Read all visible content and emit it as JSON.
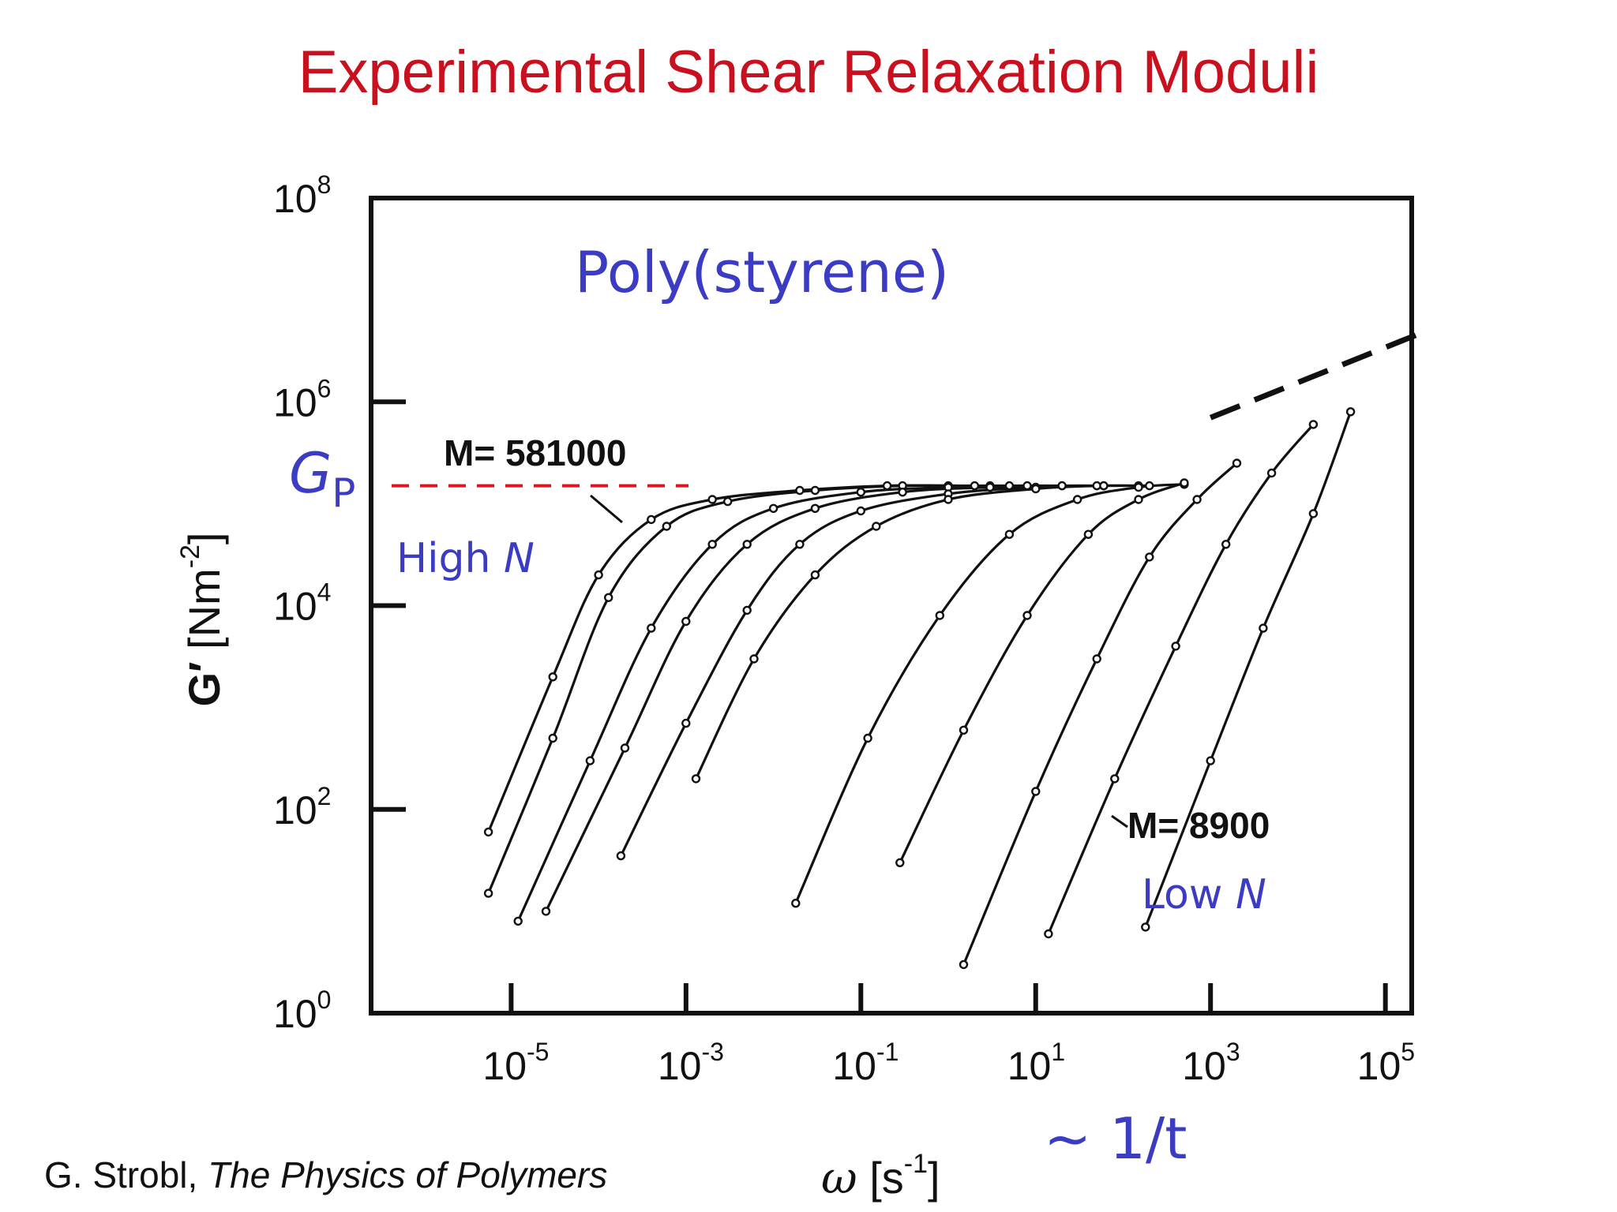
{
  "slide": {
    "title": "Experimental Shear Relaxation Moduli",
    "citation_author": "G. Strobl, ",
    "citation_book": "The Physics of Polymers"
  },
  "colors": {
    "title": "#c8101e",
    "annotation": "#3b3bc4",
    "plateau_line": "#e0141e",
    "ink": "#111111"
  },
  "chart_data": {
    "type": "line",
    "x_scale": "log",
    "y_scale": "log",
    "xlim": [
      2.5e-07,
      200000
    ],
    "ylim": [
      1,
      100000000
    ],
    "x_ticks": [
      {
        "value": 1e-05,
        "base": "10",
        "exp": "-5"
      },
      {
        "value": 0.001,
        "base": "10",
        "exp": "-3"
      },
      {
        "value": 0.1,
        "base": "10",
        "exp": "-1"
      },
      {
        "value": 10,
        "base": "10",
        "exp": "1"
      },
      {
        "value": 1000,
        "base": "10",
        "exp": "3"
      },
      {
        "value": 100000,
        "base": "10",
        "exp": "5"
      }
    ],
    "y_ticks": [
      {
        "value": 1,
        "base": "10",
        "exp": "0"
      },
      {
        "value": 100,
        "base": "10",
        "exp": "2"
      },
      {
        "value": 10000,
        "base": "10",
        "exp": "4"
      },
      {
        "value": 1000000,
        "base": "10",
        "exp": "6"
      },
      {
        "value": 100000000,
        "base": "10",
        "exp": "8"
      }
    ],
    "xlabel": {
      "symbol": "ω",
      "unit_open": " [s",
      "unit_exp": "-1",
      "unit_close": "]"
    },
    "ylabel": {
      "symbol": "G′",
      "unit_open": " [Nm",
      "unit_exp": "-2",
      "unit_close": "]"
    },
    "plot_title": "Poly(styrene)",
    "plateau": {
      "symbol": "G",
      "subscript": "P",
      "value": 150000
    },
    "annotations": {
      "high_n": "High ",
      "low_n": "Low ",
      "n_symbol": "N",
      "m_high": "M= 581000",
      "m_low": "M= 8900",
      "inverse_time": "~ 1/t"
    },
    "high_frequency_asymptote": {
      "x": [
        1000,
        300000
      ],
      "y": [
        700000,
        5000000
      ]
    },
    "plateau_modulus": 150000,
    "series": [
      {
        "x": [
          5.5e-06,
          3e-05,
          0.0001,
          0.0004,
          0.002,
          0.02,
          0.2,
          1,
          3
        ],
        "y": [
          60,
          2000,
          20000,
          70000,
          110000,
          135000,
          150000,
          150000,
          150000
        ]
      },
      {
        "x": [
          5.5e-06,
          3e-05,
          0.00013,
          0.0006,
          0.003,
          0.03,
          0.3,
          2,
          8
        ],
        "y": [
          15,
          500,
          12000,
          60000,
          105000,
          135000,
          150000,
          150000,
          150000
        ]
      },
      {
        "x": [
          1.2e-05,
          8e-05,
          0.0004,
          0.002,
          0.01,
          0.1,
          1,
          5,
          20
        ],
        "y": [
          8,
          300,
          6000,
          40000,
          90000,
          130000,
          145000,
          150000,
          150000
        ]
      },
      {
        "x": [
          2.5e-05,
          0.0002,
          0.001,
          0.005,
          0.03,
          0.3,
          3,
          20,
          60
        ],
        "y": [
          10,
          400,
          7000,
          40000,
          90000,
          130000,
          145000,
          150000,
          150000
        ]
      },
      {
        "x": [
          0.00018,
          0.001,
          0.005,
          0.02,
          0.1,
          1,
          10,
          50,
          150
        ],
        "y": [
          35,
          700,
          9000,
          40000,
          85000,
          125000,
          145000,
          150000,
          150000
        ]
      },
      {
        "x": [
          0.0013,
          0.006,
          0.03,
          0.15,
          1,
          10,
          60,
          200
        ],
        "y": [
          200,
          3000,
          20000,
          60000,
          110000,
          140000,
          150000,
          150000
        ]
      },
      {
        "x": [
          0.018,
          0.12,
          0.8,
          5,
          30,
          150,
          500
        ],
        "y": [
          12,
          500,
          8000,
          50000,
          110000,
          145000,
          155000
        ]
      },
      {
        "x": [
          0.28,
          1.5,
          8,
          40,
          150,
          500
        ],
        "y": [
          30,
          600,
          8000,
          50000,
          110000,
          160000
        ]
      },
      {
        "x": [
          1.5,
          10,
          50,
          200,
          700,
          2000
        ],
        "y": [
          3,
          150,
          3000,
          30000,
          110000,
          250000
        ]
      },
      {
        "x": [
          14,
          80,
          400,
          1500,
          5000,
          15000
        ],
        "y": [
          6,
          200,
          4000,
          40000,
          200000,
          600000
        ]
      },
      {
        "x": [
          180,
          1000,
          4000,
          15000,
          40000
        ],
        "y": [
          7,
          300,
          6000,
          80000,
          800000
        ]
      }
    ]
  }
}
